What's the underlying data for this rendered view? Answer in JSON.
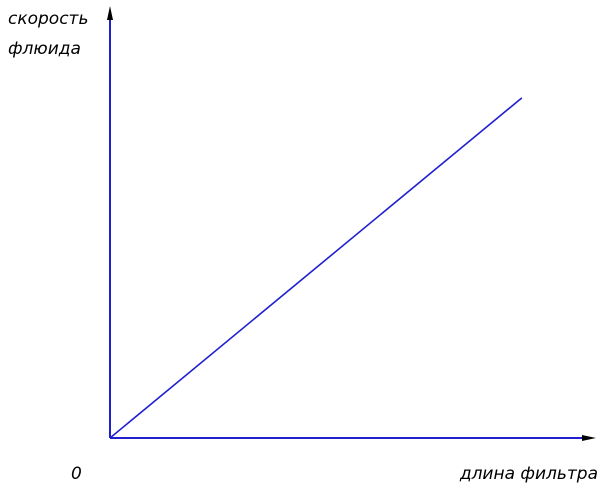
{
  "chart_data": {
    "type": "line",
    "title": "",
    "ylabel_line1": "скорость",
    "ylabel_line2": "флюида",
    "xlabel": "длина фильтра",
    "origin_label": "0",
    "x": [
      0,
      1
    ],
    "series": [
      {
        "values": [
          0,
          1
        ]
      }
    ],
    "xlim": [
      0,
      1.18
    ],
    "ylim": [
      0,
      1.27
    ],
    "grid": false,
    "legend": "none",
    "colors": {
      "line": "#2020d0",
      "axes": "#2020d0",
      "text": "#000000"
    }
  }
}
